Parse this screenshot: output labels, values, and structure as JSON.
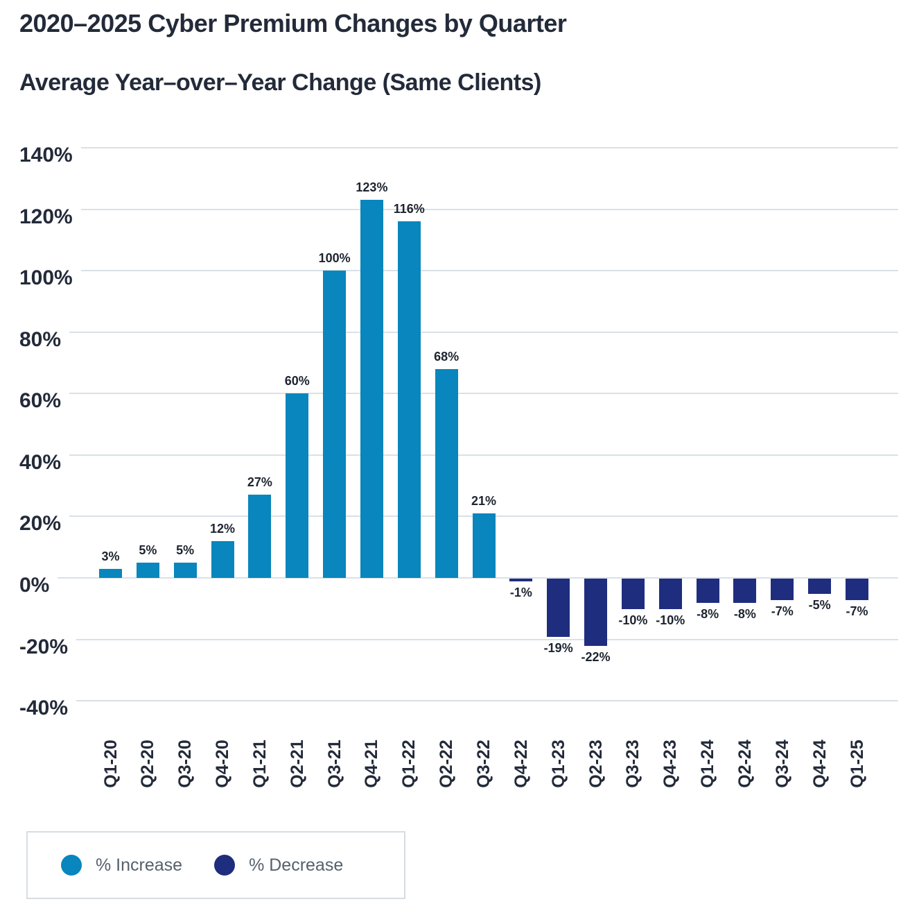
{
  "title": "2020–2025 Cyber Premium Changes by Quarter",
  "subtitle": "Average Year–over–Year Change (Same Clients)",
  "colors": {
    "increase": "#0886bd",
    "decrease": "#1f2d7e",
    "text": "#232a39",
    "legend_text": "#55616c",
    "gridline": "#d9e1e7"
  },
  "legend": {
    "increase_label": "% Increase",
    "decrease_label": "% Decrease"
  },
  "chart_data": {
    "type": "bar",
    "title": "2020–2025 Cyber Premium Changes by Quarter",
    "subtitle": "Average Year–over–Year Change (Same Clients)",
    "categories": [
      "Q1-20",
      "Q2-20",
      "Q3-20",
      "Q4-20",
      "Q1-21",
      "Q2-21",
      "Q3-21",
      "Q4-21",
      "Q1-22",
      "Q2-22",
      "Q3-22",
      "Q4-22",
      "Q1-23",
      "Q2-23",
      "Q3-23",
      "Q4-23",
      "Q1-24",
      "Q2-24",
      "Q3-24",
      "Q4-24",
      "Q1-25"
    ],
    "values": [
      3,
      5,
      5,
      12,
      27,
      60,
      100,
      123,
      116,
      68,
      21,
      -1,
      -19,
      -22,
      -10,
      -10,
      -8,
      -8,
      -7,
      -5,
      -7
    ],
    "data_labels": [
      "3%",
      "5%",
      "5%",
      "12%",
      "27%",
      "60%",
      "100%",
      "123%",
      "116%",
      "68%",
      "21%",
      "-1%",
      "-19%",
      "-22%",
      "-10%",
      "-10%",
      "-8%",
      "-8%",
      "-7%",
      "-5%",
      "-7%"
    ],
    "xlabel": "",
    "ylabel": "",
    "ylim": [
      -40,
      140
    ],
    "yticks": [
      140,
      120,
      100,
      80,
      60,
      40,
      20,
      0,
      -20,
      -40
    ],
    "ytick_suffix": "%",
    "grid": true,
    "positive_color_key": "increase",
    "negative_color_key": "decrease",
    "legend_position": "bottom-left",
    "legend_entries": [
      "% Increase",
      "% Decrease"
    ]
  }
}
